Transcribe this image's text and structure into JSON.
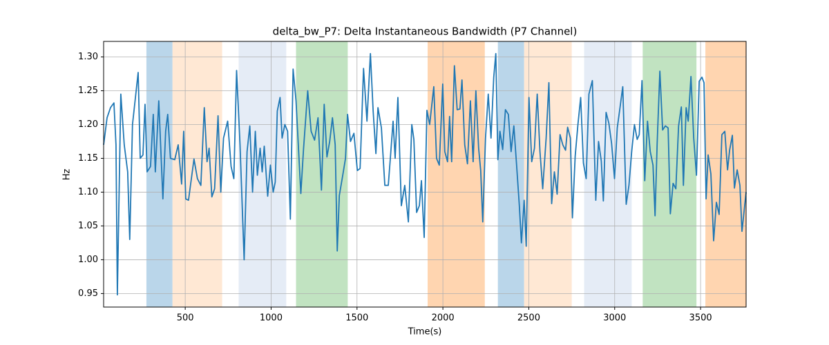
{
  "chart_data": {
    "type": "line",
    "title": "delta_bw_P7: Delta Instantaneous Bandwidth (P7 Channel)",
    "xlabel": "Time(s)",
    "ylabel": "Hz",
    "xlim": [
      25,
      3765
    ],
    "ylim": [
      0.93,
      1.323
    ],
    "xticks": [
      500,
      1000,
      1500,
      2000,
      2500,
      3000,
      3500
    ],
    "yticks": [
      0.95,
      {
        "value": 1.0,
        "label": "1.00"
      },
      1.05,
      {
        "value": 1.1,
        "label": "1.10"
      },
      1.15,
      {
        "value": 1.2,
        "label": "1.20"
      },
      1.25,
      {
        "value": 1.3,
        "label": "1.30"
      }
    ],
    "grid": true,
    "spans": [
      {
        "start": 274,
        "end": 426,
        "color": "#bad6ea"
      },
      {
        "start": 426,
        "end": 715,
        "color": "#ffe8d4"
      },
      {
        "start": 811,
        "end": 1088,
        "color": "#e5ecf6"
      },
      {
        "start": 1145,
        "end": 1446,
        "color": "#c1e3c1"
      },
      {
        "start": 1911,
        "end": 2244,
        "color": "#ffd5b0"
      },
      {
        "start": 2320,
        "end": 2473,
        "color": "#bad6ea"
      },
      {
        "start": 2473,
        "end": 2750,
        "color": "#ffe8d4"
      },
      {
        "start": 2822,
        "end": 3099,
        "color": "#e5ecf6"
      },
      {
        "start": 3163,
        "end": 3476,
        "color": "#c1e3c1"
      },
      {
        "start": 3528,
        "end": 3765,
        "color": "#ffd5b0"
      }
    ],
    "series": [
      {
        "color": "#1f77b4",
        "x": [
          25,
          45,
          65,
          85,
          97,
          105,
          125,
          145,
          165,
          177,
          193,
          226,
          238,
          254,
          266,
          278,
          298,
          314,
          326,
          346,
          370,
          386,
          398,
          414,
          439,
          459,
          479,
          491,
          503,
          519,
          551,
          571,
          591,
          611,
          627,
          639,
          655,
          671,
          691,
          707,
          723,
          747,
          767,
          783,
          799,
          819,
          843,
          860,
          876,
          892,
          908,
          920,
          936,
          948,
          960,
          980,
          996,
          1012,
          1024,
          1036,
          1052,
          1064,
          1080,
          1096,
          1112,
          1128,
          1145,
          1173,
          1189,
          1213,
          1233,
          1253,
          1273,
          1293,
          1309,
          1325,
          1341,
          1357,
          1373,
          1385,
          1397,
          1417,
          1433,
          1445,
          1462,
          1482,
          1502,
          1518,
          1538,
          1558,
          1578,
          1594,
          1610,
          1622,
          1642,
          1662,
          1682,
          1694,
          1710,
          1722,
          1738,
          1758,
          1778,
          1799,
          1819,
          1831,
          1847,
          1863,
          1875,
          1891,
          1907,
          1923,
          1947,
          1963,
          1979,
          1999,
          2011,
          2027,
          2039,
          2051,
          2067,
          2083,
          2099,
          2111,
          2127,
          2143,
          2160,
          2176,
          2192,
          2208,
          2220,
          2232,
          2248,
          2264,
          2280,
          2296,
          2308,
          2320,
          2332,
          2348,
          2364,
          2381,
          2397,
          2413,
          2429,
          2445,
          2457,
          2473,
          2485,
          2501,
          2517,
          2533,
          2549,
          2565,
          2581,
          2601,
          2617,
          2633,
          2649,
          2665,
          2682,
          2698,
          2714,
          2726,
          2742,
          2754,
          2770,
          2786,
          2802,
          2818,
          2834,
          2850,
          2870,
          2890,
          2906,
          2922,
          2934,
          2950,
          2966,
          2982,
          2999,
          3015,
          3031,
          3047,
          3067,
          3083,
          3099,
          3115,
          3131,
          3143,
          3159,
          3175,
          3191,
          3207,
          3223,
          3235,
          3247,
          3263,
          3279,
          3295,
          3311,
          3324,
          3340,
          3356,
          3372,
          3388,
          3400,
          3416,
          3428,
          3444,
          3460,
          3476,
          3492,
          3508,
          3520,
          3532,
          3544,
          3560,
          3576,
          3592,
          3608,
          3624,
          3641,
          3657,
          3669,
          3685,
          3697,
          3713,
          3729,
          3741,
          3765
        ],
        "values": [
          1.17,
          1.21,
          1.225,
          1.232,
          1.17,
          0.948,
          1.245,
          1.17,
          1.13,
          1.03,
          1.2,
          1.277,
          1.15,
          1.155,
          1.23,
          1.13,
          1.138,
          1.215,
          1.13,
          1.235,
          1.09,
          1.19,
          1.215,
          1.15,
          1.148,
          1.17,
          1.112,
          1.19,
          1.09,
          1.088,
          1.149,
          1.12,
          1.11,
          1.225,
          1.145,
          1.165,
          1.093,
          1.105,
          1.213,
          1.1,
          1.18,
          1.205,
          1.138,
          1.12,
          1.28,
          1.17,
          1.0,
          1.16,
          1.198,
          1.1,
          1.19,
          1.125,
          1.165,
          1.13,
          1.168,
          1.094,
          1.14,
          1.1,
          1.115,
          1.22,
          1.24,
          1.18,
          1.2,
          1.19,
          1.06,
          1.282,
          1.235,
          1.098,
          1.165,
          1.25,
          1.19,
          1.177,
          1.21,
          1.103,
          1.23,
          1.152,
          1.175,
          1.21,
          1.17,
          1.013,
          1.095,
          1.125,
          1.15,
          1.215,
          1.175,
          1.187,
          1.132,
          1.135,
          1.283,
          1.205,
          1.305,
          1.22,
          1.157,
          1.225,
          1.195,
          1.11,
          1.11,
          1.15,
          1.205,
          1.15,
          1.24,
          1.08,
          1.11,
          1.056,
          1.2,
          1.178,
          1.07,
          1.08,
          1.117,
          1.033,
          1.221,
          1.2,
          1.256,
          1.15,
          1.14,
          1.26,
          1.16,
          1.145,
          1.212,
          1.145,
          1.287,
          1.222,
          1.223,
          1.266,
          1.17,
          1.142,
          1.235,
          1.145,
          1.25,
          1.165,
          1.132,
          1.056,
          1.18,
          1.245,
          1.18,
          1.27,
          1.305,
          1.148,
          1.19,
          1.163,
          1.222,
          1.215,
          1.16,
          1.198,
          1.14,
          1.08,
          1.025,
          1.088,
          1.02,
          1.24,
          1.145,
          1.165,
          1.245,
          1.16,
          1.105,
          1.18,
          1.262,
          1.083,
          1.13,
          1.097,
          1.185,
          1.17,
          1.162,
          1.196,
          1.18,
          1.062,
          1.153,
          1.2,
          1.24,
          1.143,
          1.12,
          1.245,
          1.265,
          1.088,
          1.175,
          1.146,
          1.087,
          1.218,
          1.202,
          1.172,
          1.12,
          1.195,
          1.225,
          1.256,
          1.082,
          1.11,
          1.16,
          1.2,
          1.178,
          1.185,
          1.265,
          1.117,
          1.205,
          1.16,
          1.14,
          1.065,
          1.17,
          1.279,
          1.192,
          1.198,
          1.195,
          1.068,
          1.113,
          1.105,
          1.198,
          1.226,
          1.11,
          1.225,
          1.205,
          1.271,
          1.18,
          1.125,
          1.264,
          1.27,
          1.262,
          1.09,
          1.155,
          1.127,
          1.028,
          1.085,
          1.067,
          1.185,
          1.19,
          1.133,
          1.162,
          1.184,
          1.106,
          1.133,
          1.11,
          1.042,
          1.1
        ]
      }
    ]
  }
}
